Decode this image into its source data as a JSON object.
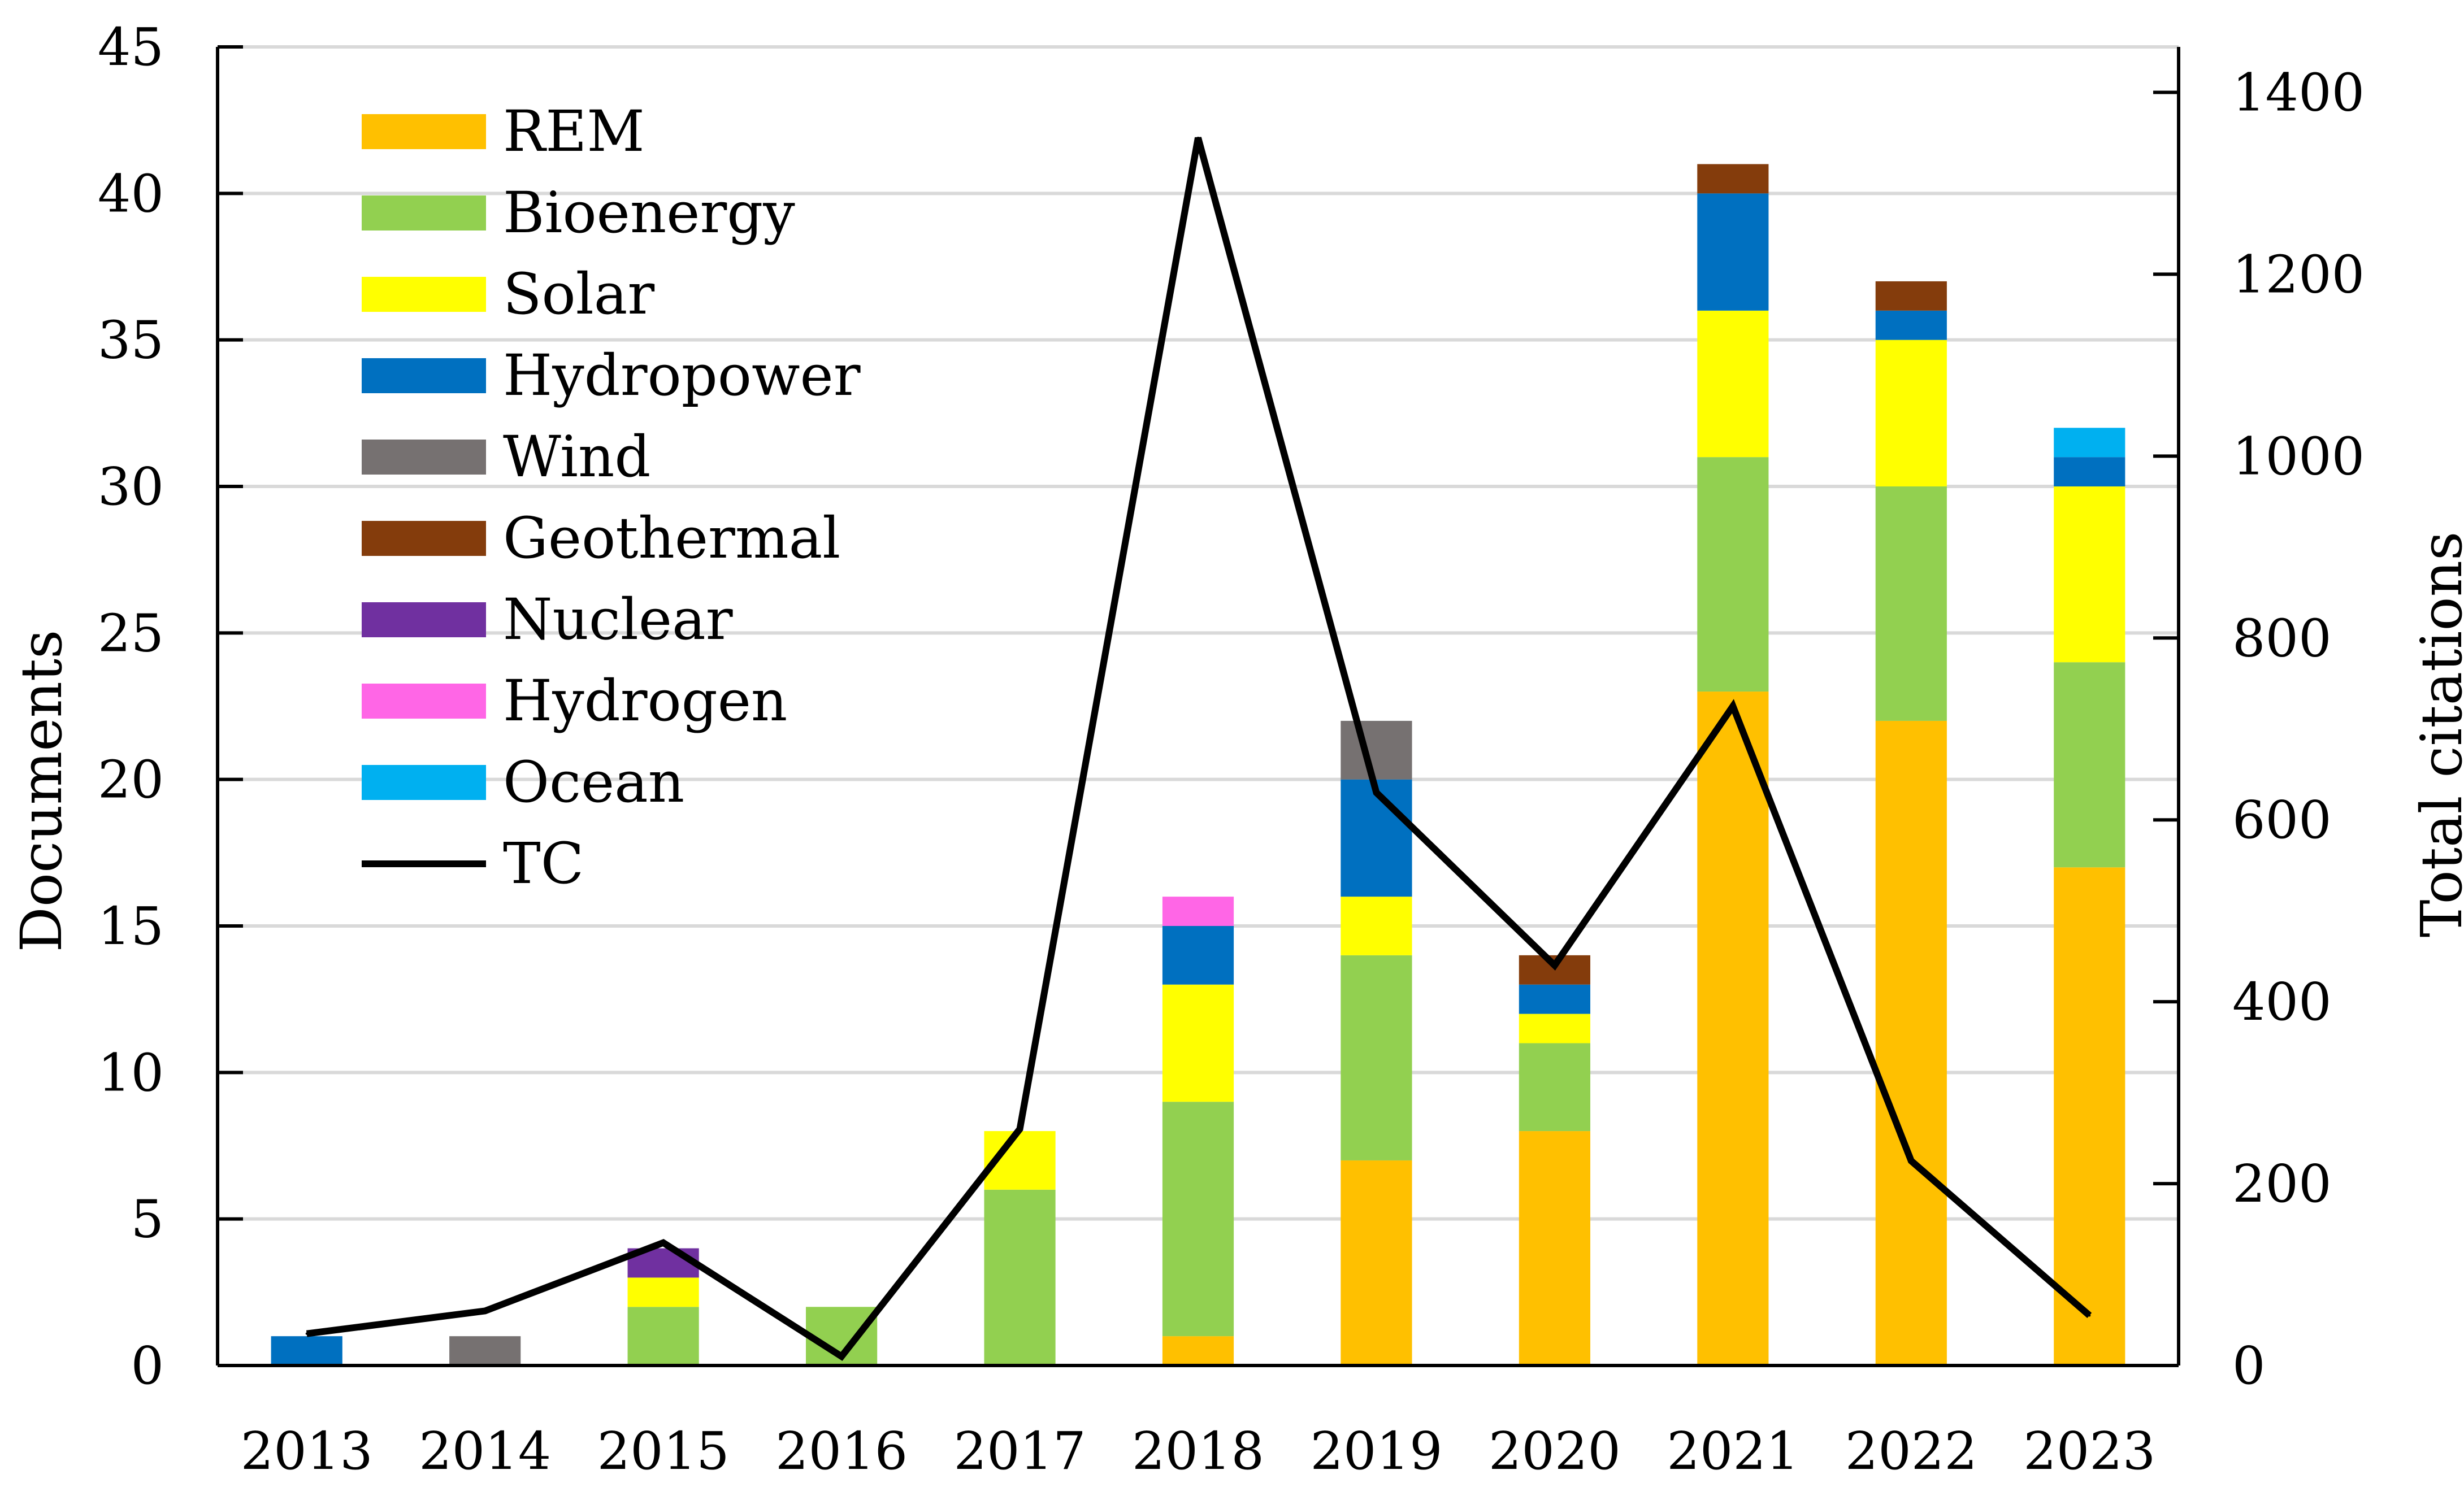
{
  "chart_data": {
    "type": "bar",
    "stacked": true,
    "title": "",
    "xlabel": "",
    "ylabel": "Documents",
    "y2label": "Total citations",
    "ylim": [
      0,
      45
    ],
    "y2lim": [
      0,
      1450
    ],
    "yticks": [
      0,
      5,
      10,
      15,
      20,
      25,
      30,
      35,
      40,
      45
    ],
    "y2ticks": [
      0,
      200,
      400,
      600,
      800,
      1000,
      1200,
      1400
    ],
    "grid": true,
    "legend_position": "top-left",
    "categories": [
      "2013",
      "2014",
      "2015",
      "2016",
      "2017",
      "2018",
      "2019",
      "2020",
      "2021",
      "2022",
      "2023"
    ],
    "series": [
      {
        "name": "REM",
        "color": "#FFC000",
        "values": [
          0,
          0,
          0,
          0,
          0,
          1,
          7,
          8,
          23,
          22,
          17
        ]
      },
      {
        "name": "Bioenergy",
        "color": "#92D050",
        "values": [
          0,
          0,
          2,
          2,
          6,
          8,
          7,
          3,
          8,
          8,
          7
        ]
      },
      {
        "name": "Solar",
        "color": "#FFFF00",
        "values": [
          0,
          0,
          1,
          0,
          2,
          4,
          2,
          1,
          5,
          5,
          6
        ]
      },
      {
        "name": "Hydropower",
        "color": "#0070C0",
        "values": [
          1,
          0,
          0,
          0,
          0,
          2,
          4,
          1,
          4,
          1,
          1
        ]
      },
      {
        "name": "Wind",
        "color": "#767171",
        "values": [
          0,
          1,
          0,
          0,
          0,
          0,
          2,
          0,
          0,
          0,
          0
        ]
      },
      {
        "name": "Geothermal",
        "color": "#843C0C",
        "values": [
          0,
          0,
          0,
          0,
          0,
          0,
          0,
          1,
          1,
          1,
          0
        ]
      },
      {
        "name": "Nuclear",
        "color": "#7030A0",
        "values": [
          0,
          0,
          1,
          0,
          0,
          0,
          0,
          0,
          0,
          0,
          0
        ]
      },
      {
        "name": "Hydrogen",
        "color": "#FF66E6",
        "values": [
          0,
          0,
          0,
          0,
          0,
          1,
          0,
          0,
          0,
          0,
          0
        ]
      },
      {
        "name": "Ocean",
        "color": "#00B0F0",
        "values": [
          0,
          0,
          0,
          0,
          0,
          0,
          0,
          0,
          0,
          0,
          1
        ]
      }
    ],
    "line_series": {
      "name": "TC",
      "color": "#000000",
      "axis": "secondary",
      "values": [
        35,
        60,
        135,
        10,
        260,
        1350,
        630,
        440,
        725,
        225,
        55
      ]
    }
  }
}
